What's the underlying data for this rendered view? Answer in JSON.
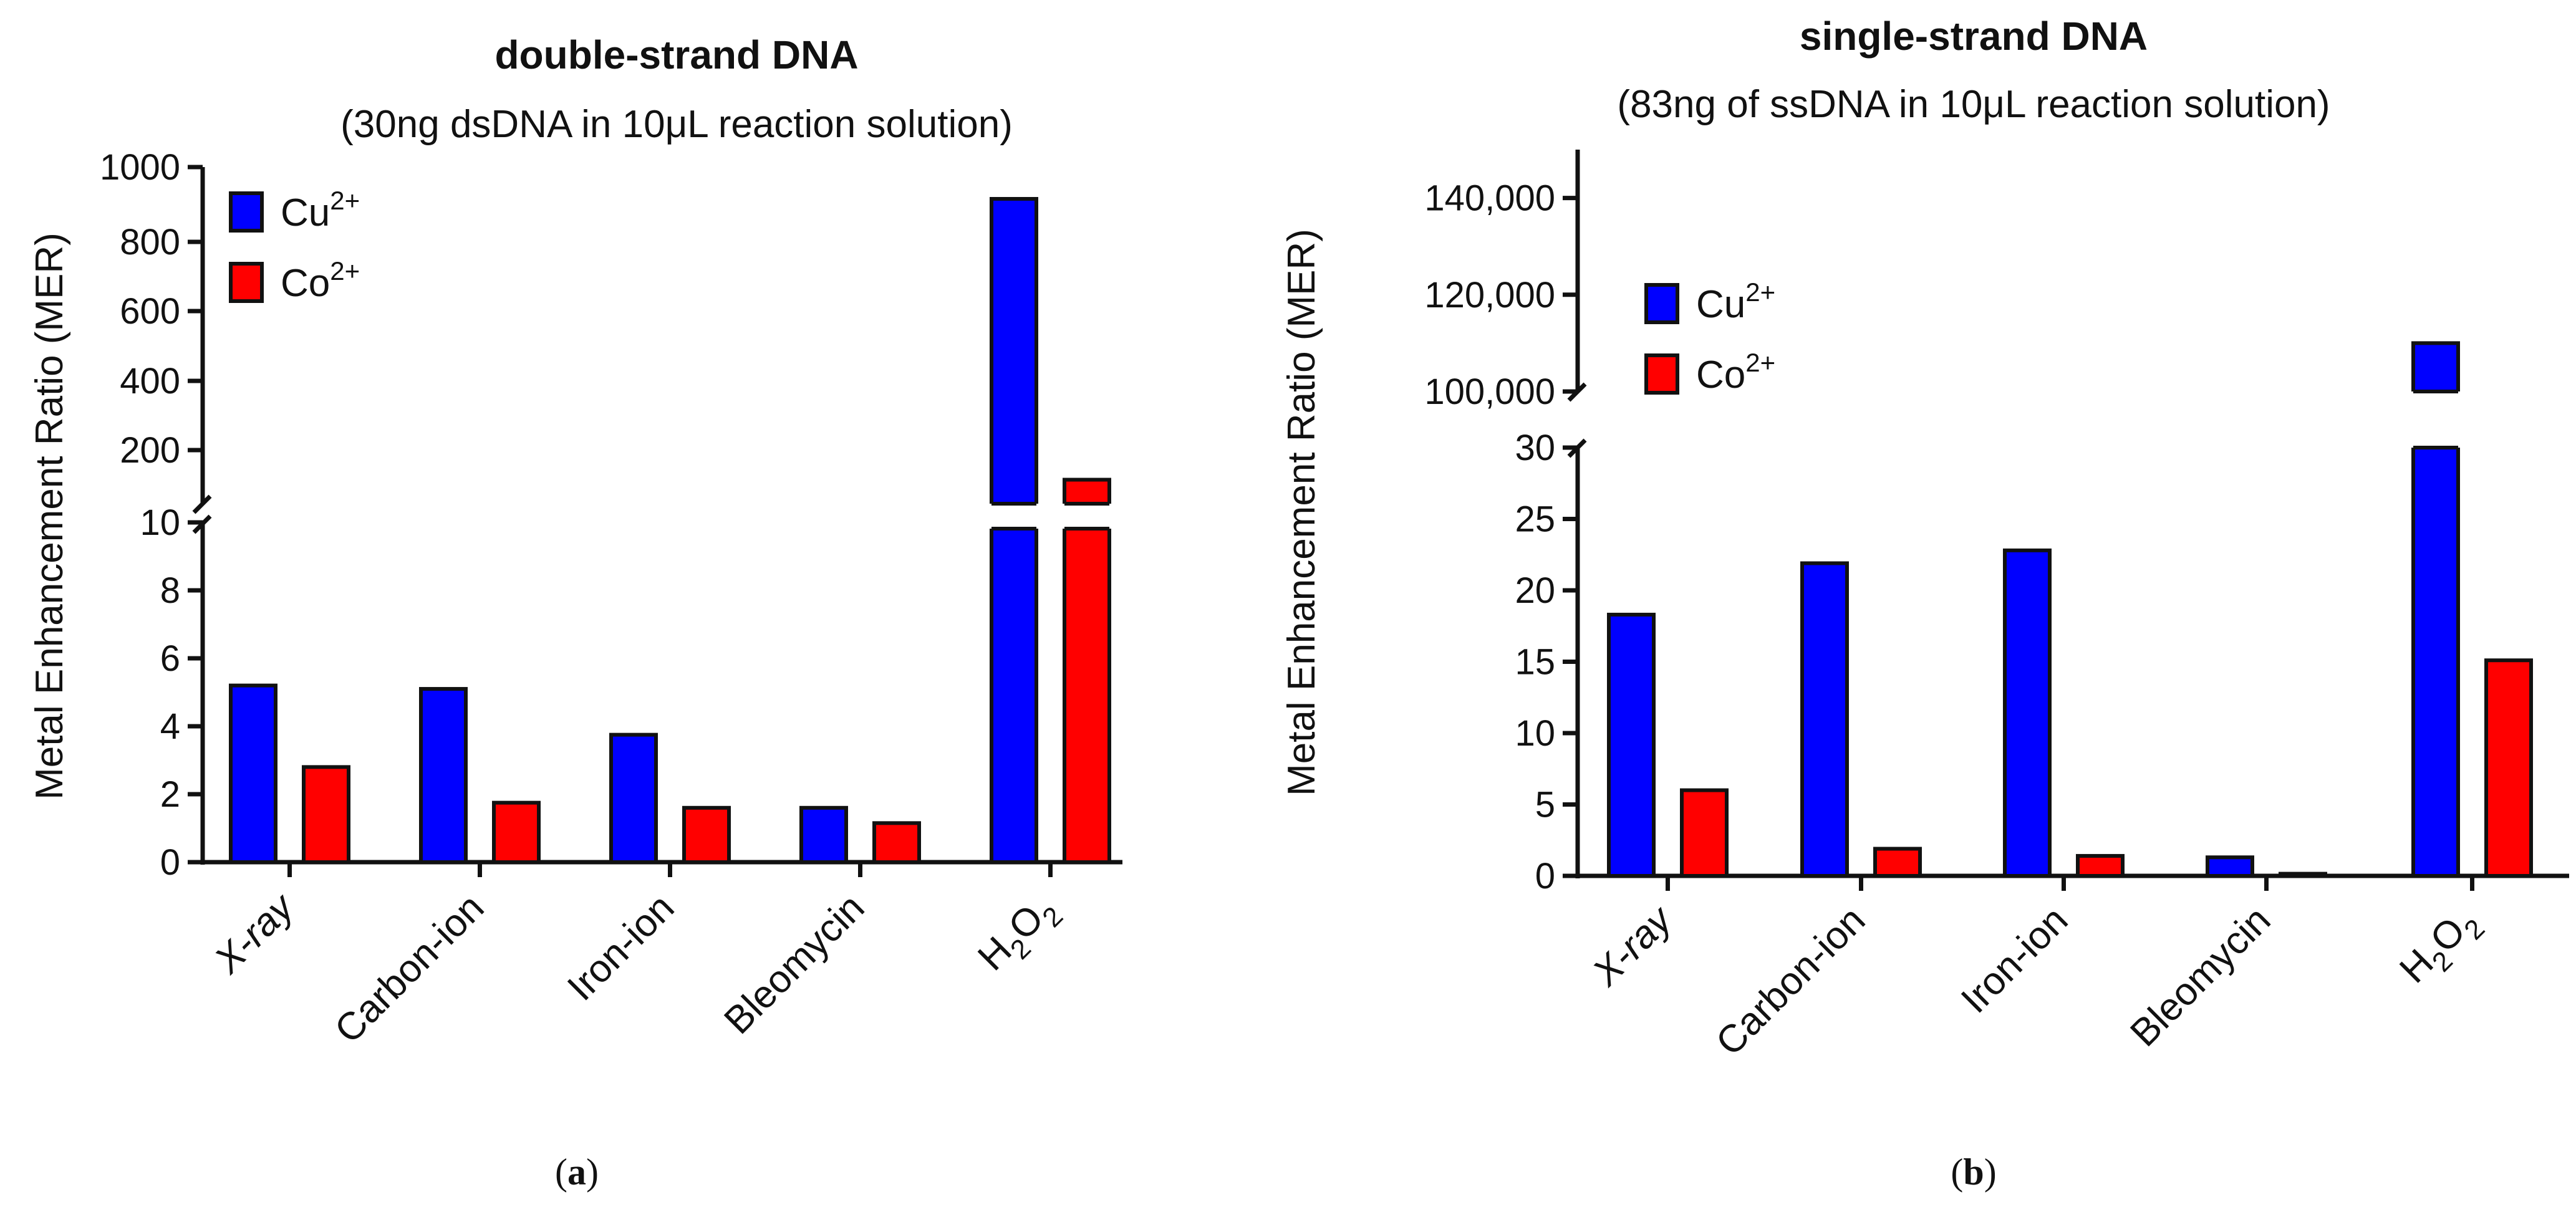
{
  "chart_data": [
    {
      "type": "bar",
      "title": "double-strand DNA",
      "subtitle": "(30ng dsDNA in 10μL reaction solution)",
      "panel_label": "a",
      "xlabel": "",
      "ylabel": "Metal Enhancement Ratio (MER)",
      "categories": [
        "X-ray",
        "Carbon-ion",
        "Iron-ion",
        "Bleomycin",
        "H2O2"
      ],
      "series": [
        {
          "name": "Cu2+",
          "color": "#0000ff",
          "values": [
            5.2,
            5.1,
            3.75,
            1.6,
            910
          ]
        },
        {
          "name": "Co2+",
          "color": "#ff0000",
          "values": [
            2.8,
            1.75,
            1.6,
            1.15,
            115
          ]
        }
      ],
      "axis_break": {
        "lower_range": [
          0,
          10
        ],
        "upper_range": [
          10,
          1000
        ]
      },
      "y_ticks_lower": [
        "0",
        "2",
        "4",
        "6",
        "8",
        "10"
      ],
      "y_ticks_upper": [
        "200",
        "400",
        "600",
        "800",
        "1000"
      ],
      "legend_placement": "top-left"
    },
    {
      "type": "bar",
      "title": "single-strand DNA",
      "subtitle": "(83ng of ssDNA in 10μL reaction solution)",
      "panel_label": "b",
      "xlabel": "",
      "ylabel": "Metal Enhancement Ratio (MER)",
      "categories": [
        "X-ray",
        "Carbon-ion",
        "Iron-ion",
        "Bleomycin",
        "H2O2"
      ],
      "series": [
        {
          "name": "Cu2+",
          "color": "#0000ff",
          "values": [
            18.3,
            21.9,
            22.8,
            1.3,
            110000
          ]
        },
        {
          "name": "Co2+",
          "color": "#ff0000",
          "values": [
            6.0,
            1.9,
            1.4,
            0.15,
            15.1
          ]
        }
      ],
      "axis_break": {
        "lower_range": [
          0,
          30
        ],
        "upper_range": [
          100000,
          150000
        ]
      },
      "y_ticks_lower": [
        "0",
        "5",
        "10",
        "15",
        "20",
        "25",
        "30"
      ],
      "y_ticks_upper": [
        "100,000",
        "120,000",
        "140,000"
      ],
      "legend_placement": "top-left"
    }
  ],
  "labels": {
    "cu_base": "Cu",
    "cu_sup": "2+",
    "co_base": "Co",
    "co_sup": "2+",
    "h_base": "H",
    "h_sub": "2",
    "o_base": "O",
    "o_sub": "2"
  },
  "panels": {
    "a_open": "(",
    "a_letter": "a",
    "a_close": ")",
    "b_open": "(",
    "b_letter": "b",
    "b_close": ")"
  }
}
